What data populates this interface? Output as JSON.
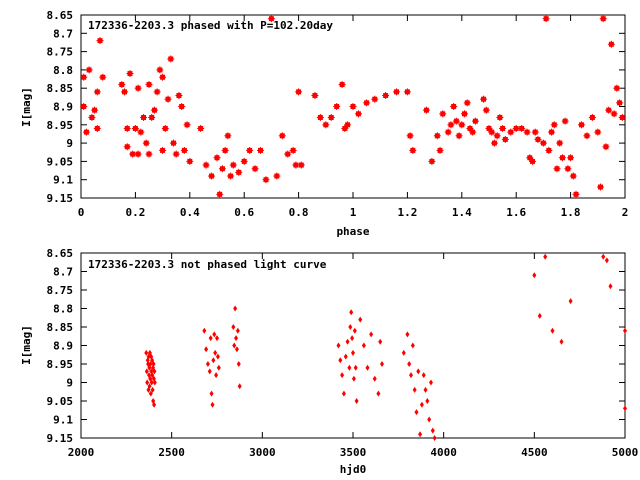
{
  "chart_data": [
    {
      "type": "scatter",
      "title": "172336-2203.3 phased with P=102.20day",
      "xlabel": "phase",
      "ylabel": "I[mag]",
      "xlim": [
        0,
        2
      ],
      "ylim": [
        8.65,
        9.15
      ],
      "y_inverted": true,
      "x_ticks": [
        "0",
        "0.2",
        "0.4",
        "0.6",
        "0.8",
        "1",
        "1.2",
        "1.4",
        "1.6",
        "1.8",
        "2"
      ],
      "y_ticks": [
        "8.65",
        "8.7",
        "8.75",
        "8.8",
        "8.85",
        "8.9",
        "8.95",
        "9",
        "9.05",
        "9.1",
        "9.15"
      ],
      "marker_color": "#ff0000",
      "marker": "star",
      "grid": false,
      "legend": "none",
      "x": [
        0.01,
        0.01,
        0.02,
        0.03,
        0.04,
        0.05,
        0.06,
        0.06,
        0.07,
        0.08,
        0.15,
        0.16,
        0.17,
        0.17,
        0.18,
        0.19,
        0.2,
        0.21,
        0.21,
        0.22,
        0.23,
        0.24,
        0.25,
        0.25,
        0.26,
        0.27,
        0.28,
        0.29,
        0.3,
        0.3,
        0.31,
        0.32,
        0.33,
        0.34,
        0.35,
        0.36,
        0.37,
        0.38,
        0.39,
        0.4,
        0.44,
        0.46,
        0.48,
        0.5,
        0.51,
        0.52,
        0.53,
        0.54,
        0.55,
        0.56,
        0.58,
        0.6,
        0.62,
        0.64,
        0.66,
        0.68,
        0.7,
        0.72,
        0.74,
        0.76,
        0.78,
        0.79,
        0.8,
        0.81,
        0.86,
        0.88,
        0.9,
        0.92,
        0.94,
        0.96,
        0.97,
        0.98,
        1.0,
        1.02,
        1.05,
        1.08,
        1.12,
        1.16,
        1.2,
        1.21,
        1.22,
        1.27,
        1.29,
        1.31,
        1.32,
        1.33,
        1.35,
        1.36,
        1.37,
        1.38,
        1.39,
        1.4,
        1.41,
        1.42,
        1.43,
        1.44,
        1.45,
        1.48,
        1.49,
        1.5,
        1.51,
        1.52,
        1.53,
        1.54,
        1.55,
        1.56,
        1.58,
        1.6,
        1.62,
        1.64,
        1.65,
        1.66,
        1.67,
        1.68,
        1.7,
        1.71,
        1.72,
        1.73,
        1.74,
        1.75,
        1.76,
        1.77,
        1.78,
        1.79,
        1.8,
        1.81,
        1.82,
        1.84,
        1.86,
        1.88,
        1.9,
        1.91,
        1.92,
        1.93,
        1.94,
        1.95,
        1.96,
        1.97,
        1.98,
        1.99
      ],
      "y": [
        8.82,
        8.9,
        8.97,
        8.8,
        8.93,
        8.91,
        8.86,
        8.96,
        8.72,
        8.82,
        8.84,
        8.86,
        8.96,
        9.01,
        8.81,
        9.03,
        8.96,
        9.03,
        8.85,
        8.97,
        8.93,
        9.0,
        8.84,
        9.03,
        8.93,
        8.91,
        8.86,
        8.8,
        9.02,
        8.82,
        8.96,
        8.88,
        8.77,
        9.0,
        9.03,
        8.87,
        8.9,
        9.02,
        8.95,
        9.05,
        8.96,
        9.06,
        9.09,
        9.04,
        9.14,
        9.07,
        9.02,
        8.98,
        9.09,
        9.06,
        9.08,
        9.05,
        9.02,
        9.07,
        9.02,
        9.1,
        8.66,
        9.09,
        8.98,
        9.03,
        9.02,
        9.06,
        8.86,
        9.06,
        8.87,
        8.93,
        8.95,
        8.93,
        8.9,
        8.84,
        8.96,
        8.95,
        8.9,
        8.92,
        8.89,
        8.88,
        8.87,
        8.86,
        8.86,
        8.98,
        9.02,
        8.91,
        9.05,
        8.98,
        9.02,
        8.92,
        8.97,
        8.95,
        8.9,
        8.94,
        8.98,
        8.95,
        8.92,
        8.89,
        8.96,
        8.97,
        8.94,
        8.88,
        8.91,
        8.96,
        8.97,
        9.0,
        8.98,
        8.93,
        8.96,
        8.99,
        8.97,
        8.96,
        8.96,
        8.97,
        9.04,
        9.05,
        8.97,
        8.99,
        9.0,
        8.66,
        9.02,
        8.97,
        8.95,
        9.07,
        9.0,
        9.04,
        8.94,
        9.07,
        9.04,
        9.09,
        9.14,
        8.95,
        8.98,
        8.93,
        8.97,
        9.12,
        8.66,
        9.01,
        8.91,
        8.73,
        8.92,
        8.85,
        8.89,
        8.93
      ]
    },
    {
      "type": "scatter",
      "title": "172336-2203.3 not phased light curve",
      "xlabel": "hjd0",
      "ylabel": "I[mag]",
      "xlim": [
        2000,
        5000
      ],
      "ylim": [
        8.65,
        9.15
      ],
      "y_inverted": true,
      "x_ticks": [
        "2000",
        "2500",
        "3000",
        "3500",
        "4000",
        "4500",
        "5000"
      ],
      "y_ticks": [
        "8.65",
        "8.7",
        "8.75",
        "8.8",
        "8.85",
        "8.9",
        "8.95",
        "9",
        "9.05",
        "9.1",
        "9.15"
      ],
      "marker_color": "#ff0000",
      "marker": "diamond",
      "grid": false,
      "legend": "none",
      "x": [
        2360,
        2363,
        2365,
        2368,
        2370,
        2372,
        2373,
        2375,
        2377,
        2378,
        2380,
        2382,
        2383,
        2385,
        2387,
        2388,
        2390,
        2392,
        2393,
        2395,
        2397,
        2398,
        2400,
        2402,
        2403,
        2405,
        2407,
        2680,
        2690,
        2700,
        2710,
        2715,
        2720,
        2725,
        2730,
        2735,
        2740,
        2745,
        2750,
        2755,
        2760,
        2840,
        2845,
        2850,
        2855,
        2860,
        2865,
        2870,
        2875,
        3420,
        3430,
        3440,
        3450,
        3460,
        3470,
        3480,
        3485,
        3490,
        3495,
        3500,
        3505,
        3510,
        3515,
        3520,
        3540,
        3560,
        3580,
        3600,
        3620,
        3640,
        3650,
        3660,
        3780,
        3800,
        3810,
        3820,
        3830,
        3840,
        3850,
        3860,
        3870,
        3880,
        3890,
        3900,
        3910,
        3920,
        3930,
        3940,
        3950,
        4500,
        4530,
        4560,
        4600,
        4650,
        4700,
        4880,
        4900,
        4920,
        5000,
        5000
      ],
      "y": [
        8.92,
        8.97,
        9.0,
        8.94,
        8.95,
        9.02,
        8.93,
        8.98,
        8.96,
        9.01,
        8.92,
        8.99,
        8.95,
        9.03,
        8.93,
        8.97,
        9.0,
        8.94,
        8.98,
        9.02,
        8.96,
        9.05,
        8.95,
        8.99,
        9.06,
        8.97,
        9.0,
        8.86,
        8.91,
        8.95,
        8.97,
        8.88,
        9.03,
        9.06,
        8.94,
        8.87,
        8.92,
        8.98,
        8.88,
        8.93,
        8.96,
        8.85,
        8.9,
        8.8,
        8.88,
        8.91,
        8.86,
        8.95,
        9.01,
        8.9,
        8.94,
        8.98,
        9.03,
        8.93,
        8.89,
        8.96,
        8.85,
        8.81,
        8.88,
        8.92,
        8.99,
        8.86,
        8.96,
        9.05,
        8.83,
        8.9,
        8.96,
        8.87,
        8.99,
        9.03,
        8.89,
        8.95,
        8.92,
        8.87,
        8.95,
        8.98,
        8.9,
        9.02,
        9.08,
        8.97,
        9.14,
        9.06,
        8.98,
        9.02,
        9.05,
        9.1,
        9.0,
        9.13,
        9.15,
        8.71,
        8.82,
        8.66,
        8.86,
        8.89,
        8.78,
        8.66,
        8.67,
        8.74,
        8.86,
        9.07
      ]
    }
  ]
}
